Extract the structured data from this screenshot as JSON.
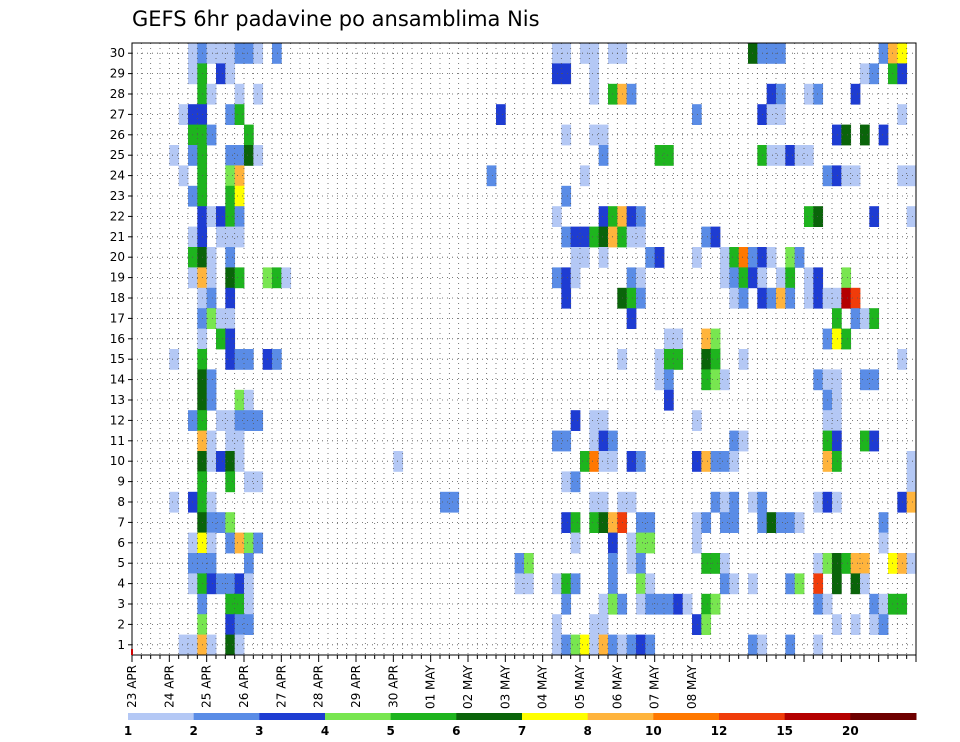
{
  "chart_data": {
    "type": "heatmap",
    "title": "GEFS 6hr padavine po ansamblima Nis",
    "xlabel": "",
    "ylabel": "",
    "x_tick_labels": [
      "23 APR",
      "24 APR",
      "25 APR",
      "26 APR",
      "27 APR",
      "28 APR",
      "29 APR",
      "30 APR",
      "01 MAY",
      "02 MAY",
      "03 MAY",
      "04 MAY",
      "05 MAY",
      "06 MAY",
      "07 MAY",
      "08 MAY"
    ],
    "y_tick_labels": [
      1,
      2,
      3,
      4,
      5,
      6,
      7,
      8,
      9,
      10,
      11,
      12,
      13,
      14,
      15,
      16,
      17,
      18,
      19,
      20,
      21,
      22,
      23,
      24,
      25,
      26,
      27,
      28,
      29,
      30
    ],
    "grid": true,
    "colorbar": {
      "position": "bottom",
      "tick_labels": [
        "1",
        "2",
        "3",
        "4",
        "5",
        "6",
        "7",
        "8",
        "10",
        "12",
        "15",
        "20"
      ],
      "bins": [
        {
          "min": 1,
          "max": 2,
          "color": "#b4c8f5"
        },
        {
          "min": 2,
          "max": 3,
          "color": "#5a8ce6"
        },
        {
          "min": 3,
          "max": 4,
          "color": "#1e3cd2"
        },
        {
          "min": 4,
          "max": 5,
          "color": "#78e650"
        },
        {
          "min": 5,
          "max": 6,
          "color": "#1eb41e"
        },
        {
          "min": 6,
          "max": 7,
          "color": "#0a640a"
        },
        {
          "min": 7,
          "max": 8,
          "color": "#ffff00"
        },
        {
          "min": 8,
          "max": 10,
          "color": "#ffb43c"
        },
        {
          "min": 10,
          "max": 12,
          "color": "#ff7800"
        },
        {
          "min": 12,
          "max": 15,
          "color": "#f03c0a"
        },
        {
          "min": 15,
          "max": 20,
          "color": "#b40000"
        },
        {
          "min": 20,
          "max": 30,
          "color": "#6e0000"
        }
      ]
    },
    "value_note": "values in bin index units: 1=1-2, 2=2-3, 3=3-4, 4=4-5, 5=5-6, 6=6-7, 7=7-8, 8=8-10, 9=10-12, 10=12-15, 11=15-20, 12=20+",
    "time_step_hours": 6,
    "series": [
      {
        "member": 30,
        "values": {
          "6": 1,
          "7": 2,
          "8": 1,
          "9": 1,
          "10": 1,
          "11": 2,
          "12": 2,
          "13": 1,
          "15": 2,
          "45": 1,
          "46": 1,
          "48": 1,
          "49": 1,
          "51": 1,
          "52": 1,
          "66": 6,
          "67": 2,
          "68": 2,
          "69": 2,
          "80": 2,
          "81": 8,
          "82": 7
        }
      },
      {
        "member": 29,
        "values": {
          "6": 1,
          "7": 5,
          "9": 3,
          "10": 1,
          "45": 3,
          "46": 3,
          "49": 1,
          "78": 1,
          "79": 2,
          "81": 5,
          "82": 3
        }
      },
      {
        "member": 28,
        "values": {
          "7": 5,
          "8": 1,
          "11": 1,
          "13": 1,
          "49": 1,
          "51": 5,
          "52": 8,
          "53": 2,
          "68": 3,
          "69": 2,
          "72": 1,
          "73": 2,
          "77": 3
        }
      },
      {
        "member": 27,
        "values": {
          "5": 1,
          "6": 3,
          "7": 3,
          "10": 2,
          "11": 5,
          "39": 3,
          "60": 2,
          "67": 3,
          "68": 1,
          "69": 1,
          "82": 1
        }
      },
      {
        "member": 26,
        "values": {
          "6": 5,
          "7": 5,
          "8": 2,
          "12": 5,
          "46": 1,
          "49": 1,
          "50": 1,
          "75": 3,
          "76": 6,
          "78": 6,
          "80": 3
        }
      },
      {
        "member": 25,
        "values": {
          "4": 1,
          "6": 2,
          "7": 5,
          "10": 2,
          "11": 2,
          "12": 6,
          "13": 1,
          "50": 2,
          "56": 5,
          "57": 5,
          "67": 5,
          "68": 1,
          "69": 1,
          "70": 3,
          "71": 1,
          "72": 1
        }
      },
      {
        "member": 24,
        "values": {
          "5": 1,
          "7": 5,
          "10": 4,
          "11": 8,
          "38": 2,
          "48": 1,
          "74": 2,
          "75": 3,
          "76": 1,
          "77": 1,
          "82": 1,
          "83": 1
        }
      },
      {
        "member": 23,
        "values": {
          "6": 2,
          "7": 5,
          "10": 5,
          "11": 7,
          "46": 2
        }
      },
      {
        "member": 22,
        "values": {
          "7": 3,
          "8": 1,
          "9": 3,
          "10": 5,
          "11": 2,
          "45": 1,
          "50": 3,
          "51": 5,
          "52": 8,
          "53": 3,
          "54": 2,
          "72": 5,
          "73": 6,
          "79": 3,
          "83": 1
        }
      },
      {
        "member": 21,
        "values": {
          "6": 1,
          "7": 3,
          "9": 1,
          "10": 1,
          "11": 1,
          "46": 2,
          "47": 3,
          "48": 3,
          "49": 5,
          "50": 6,
          "51": 8,
          "52": 5,
          "53": 1,
          "54": 1,
          "61": 2,
          "62": 3
        }
      },
      {
        "member": 20,
        "values": {
          "6": 5,
          "7": 6,
          "8": 1,
          "10": 2,
          "47": 1,
          "48": 1,
          "50": 1,
          "55": 2,
          "56": 3,
          "60": 1,
          "63": 1,
          "64": 5,
          "65": 9,
          "66": 2,
          "67": 3,
          "68": 1,
          "70": 4,
          "71": 2
        }
      },
      {
        "member": 19,
        "values": {
          "6": 1,
          "7": 8,
          "8": 1,
          "10": 6,
          "11": 5,
          "14": 4,
          "15": 5,
          "16": 1,
          "45": 2,
          "46": 3,
          "47": 1,
          "53": 2,
          "54": 1,
          "63": 1,
          "64": 2,
          "65": 5,
          "66": 3,
          "67": 1,
          "69": 1,
          "70": 5,
          "72": 1,
          "73": 3,
          "76": 4
        }
      },
      {
        "member": 18,
        "values": {
          "7": 1,
          "8": 2,
          "10": 3,
          "46": 3,
          "52": 6,
          "53": 5,
          "54": 2,
          "64": 1,
          "65": 2,
          "67": 3,
          "68": 2,
          "69": 8,
          "70": 2,
          "72": 1,
          "73": 3,
          "74": 1,
          "75": 1,
          "76": 11,
          "77": 10
        }
      },
      {
        "member": 17,
        "values": {
          "7": 2,
          "8": 4,
          "9": 1,
          "10": 1,
          "53": 3,
          "75": 5,
          "77": 2,
          "78": 1,
          "79": 5
        }
      },
      {
        "member": 16,
        "values": {
          "7": 1,
          "9": 5,
          "10": 3,
          "57": 1,
          "58": 1,
          "61": 8,
          "62": 4,
          "74": 2,
          "75": 7,
          "76": 5
        }
      },
      {
        "member": 15,
        "values": {
          "4": 1,
          "7": 5,
          "10": 3,
          "11": 2,
          "12": 2,
          "14": 3,
          "15": 2,
          "52": 1,
          "56": 1,
          "57": 5,
          "58": 5,
          "61": 6,
          "62": 5,
          "65": 1,
          "82": 1
        }
      },
      {
        "member": 14,
        "values": {
          "7": 6,
          "8": 2,
          "56": 1,
          "57": 2,
          "61": 5,
          "62": 4,
          "63": 1,
          "73": 2,
          "74": 1,
          "75": 1,
          "78": 2,
          "79": 2
        }
      },
      {
        "member": 13,
        "values": {
          "7": 6,
          "8": 2,
          "11": 4,
          "12": 1,
          "57": 3,
          "74": 2,
          "75": 1
        }
      },
      {
        "member": 12,
        "values": {
          "6": 2,
          "7": 5,
          "9": 1,
          "10": 1,
          "11": 2,
          "12": 2,
          "13": 2,
          "47": 3,
          "49": 1,
          "50": 1,
          "60": 1,
          "74": 1,
          "75": 1
        }
      },
      {
        "member": 11,
        "values": {
          "7": 8,
          "8": 1,
          "10": 1,
          "11": 1,
          "45": 2,
          "46": 2,
          "49": 1,
          "50": 3,
          "51": 2,
          "64": 2,
          "65": 1,
          "74": 5,
          "75": 3,
          "78": 5,
          "79": 3
        }
      },
      {
        "member": 10,
        "values": {
          "7": 6,
          "8": 1,
          "9": 3,
          "10": 6,
          "11": 1,
          "28": 1,
          "48": 5,
          "49": 9,
          "50": 1,
          "51": 1,
          "53": 3,
          "54": 2,
          "60": 3,
          "61": 8,
          "62": 2,
          "63": 2,
          "64": 1,
          "74": 8,
          "75": 5,
          "83": 1
        }
      },
      {
        "member": 9,
        "values": {
          "7": 5,
          "10": 5,
          "12": 1,
          "13": 1,
          "46": 1,
          "47": 2,
          "83": 1
        }
      },
      {
        "member": 8,
        "values": {
          "4": 1,
          "6": 3,
          "7": 5,
          "8": 1,
          "33": 2,
          "34": 2,
          "49": 1,
          "50": 1,
          "52": 1,
          "53": 1,
          "62": 2,
          "63": 1,
          "64": 2,
          "66": 1,
          "67": 2,
          "73": 1,
          "74": 3,
          "75": 1,
          "82": 3,
          "83": 8
        }
      },
      {
        "member": 7,
        "values": {
          "7": 6,
          "8": 2,
          "9": 2,
          "10": 4,
          "46": 3,
          "47": 5,
          "49": 5,
          "50": 6,
          "51": 8,
          "52": 10,
          "54": 2,
          "55": 2,
          "60": 1,
          "61": 2,
          "63": 2,
          "64": 2,
          "67": 2,
          "68": 6,
          "69": 2,
          "70": 2,
          "71": 1,
          "80": 2
        }
      },
      {
        "member": 6,
        "values": {
          "6": 1,
          "7": 7,
          "8": 1,
          "10": 2,
          "11": 8,
          "12": 4,
          "13": 2,
          "47": 1,
          "51": 3,
          "53": 1,
          "54": 4,
          "55": 4,
          "60": 1,
          "80": 1
        }
      },
      {
        "member": 5,
        "values": {
          "6": 2,
          "7": 2,
          "8": 2,
          "12": 2,
          "41": 2,
          "42": 4,
          "51": 2,
          "53": 1,
          "54": 2,
          "61": 5,
          "62": 5,
          "63": 1,
          "73": 1,
          "74": 4,
          "75": 6,
          "76": 5,
          "77": 8,
          "78": 8,
          "81": 7,
          "82": 8,
          "83": 1
        }
      },
      {
        "member": 4,
        "values": {
          "6": 1,
          "7": 5,
          "8": 3,
          "9": 2,
          "10": 2,
          "11": 3,
          "12": 1,
          "41": 1,
          "42": 1,
          "45": 1,
          "46": 5,
          "47": 2,
          "51": 2,
          "54": 4,
          "55": 1,
          "63": 2,
          "64": 1,
          "66": 1,
          "70": 2,
          "71": 4,
          "73": 10,
          "75": 6,
          "77": 6,
          "78": 1
        }
      },
      {
        "member": 3,
        "values": {
          "7": 2,
          "10": 5,
          "11": 5,
          "12": 1,
          "46": 2,
          "50": 1,
          "51": 4,
          "52": 2,
          "54": 1,
          "55": 2,
          "56": 2,
          "57": 2,
          "58": 3,
          "59": 1,
          "61": 5,
          "62": 4,
          "73": 2,
          "74": 1,
          "79": 2,
          "80": 1,
          "81": 5,
          "82": 5
        }
      },
      {
        "member": 2,
        "values": {
          "7": 4,
          "10": 3,
          "11": 2,
          "12": 2,
          "45": 1,
          "49": 1,
          "50": 1,
          "60": 3,
          "61": 4,
          "75": 1,
          "77": 1,
          "79": 1,
          "80": 2
        }
      },
      {
        "member": 1,
        "values": {
          "5": 1,
          "6": 1,
          "7": 8,
          "8": 1,
          "10": 6,
          "11": 1,
          "45": 1,
          "46": 2,
          "47": 4,
          "48": 7,
          "49": 1,
          "50": 8,
          "51": 2,
          "52": 1,
          "53": 2,
          "54": 3,
          "55": 2,
          "66": 2,
          "67": 1,
          "70": 2,
          "73": 1
        }
      }
    ]
  }
}
